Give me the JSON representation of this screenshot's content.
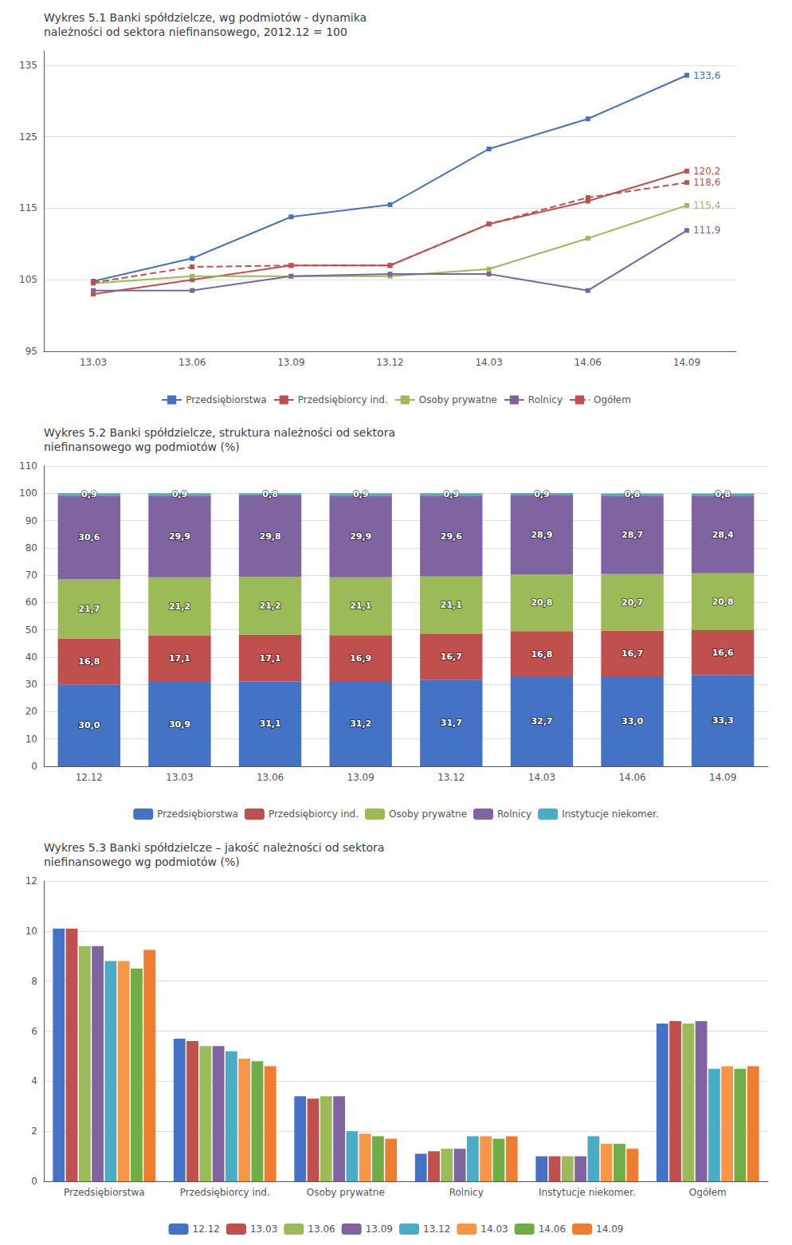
{
  "chart_data": [
    {
      "type": "line",
      "title": "Wykres 5.1 Banki spółdzielcze, wg podmiotów - dynamika\nnależności od sektora niefinansowego, 2012.12 = 100",
      "categories": [
        "13.03",
        "13.06",
        "13.09",
        "13.12",
        "14.03",
        "14.06",
        "14.09"
      ],
      "series": [
        {
          "name": "Przedsiębiorstwa",
          "color": "#4472c4",
          "marker": "square",
          "line_style": "solid",
          "values": [
            104.8,
            108.0,
            113.8,
            115.5,
            123.3,
            127.5,
            133.6
          ],
          "value_labels": [
            null,
            null,
            null,
            null,
            null,
            null,
            "133,6"
          ]
        },
        {
          "name": "Przedsiębiorcy ind.",
          "color": "#c0504d",
          "marker": "square",
          "line_style": "solid",
          "values": [
            103.0,
            105.0,
            107.0,
            107.0,
            112.8,
            116.0,
            120.2
          ],
          "value_labels": [
            null,
            null,
            null,
            null,
            null,
            null,
            "120,2"
          ]
        },
        {
          "name": "Osoby prywatne",
          "color": "#9bbb59",
          "marker": "square",
          "line_style": "solid",
          "values": [
            104.5,
            105.5,
            105.5,
            105.5,
            106.5,
            110.8,
            115.4
          ],
          "value_labels": [
            null,
            null,
            null,
            null,
            null,
            null,
            "115,4"
          ]
        },
        {
          "name": "Rolnicy",
          "color": "#8064a2",
          "marker": "square",
          "line_style": "solid",
          "values": [
            103.5,
            103.5,
            105.5,
            105.8,
            105.8,
            103.5,
            111.9
          ],
          "value_labels": [
            null,
            null,
            null,
            null,
            null,
            null,
            "111,9"
          ]
        },
        {
          "name": "Ogółem",
          "color": "#c0504d",
          "marker": "square",
          "line_style": "dashed",
          "values": [
            104.6,
            106.8,
            107.0,
            107.0,
            112.8,
            116.5,
            118.6
          ],
          "value_labels": [
            null,
            null,
            null,
            null,
            null,
            null,
            "118,6"
          ]
        }
      ],
      "data_labels": true,
      "ylim": [
        95,
        137
      ],
      "yticks": [
        95,
        105,
        115,
        125,
        135
      ],
      "grid": true,
      "legend": "bottom"
    },
    {
      "type": "bar",
      "title": "Wykres 5.2 Banki spółdzielcze, struktura należności od sektora\nniefinansowego wg podmiotów (%)",
      "categories": [
        "12.12",
        "13.03",
        "13.06",
        "13.09",
        "13.12",
        "14.03",
        "14.06",
        "14.09"
      ],
      "stacked": true,
      "data_labels": true,
      "series": [
        {
          "name": "Przedsiębiorstwa",
          "color": "#4472c4",
          "values": [
            30.0,
            30.9,
            31.1,
            31.2,
            31.7,
            32.7,
            33.0,
            33.3
          ],
          "value_labels": [
            "30,0",
            "30,9",
            "31,1",
            "31,2",
            "31,7",
            "32,7",
            "33,0",
            "33,3"
          ]
        },
        {
          "name": "Przedsiębiorcy ind.",
          "color": "#c0504d",
          "values": [
            16.8,
            17.1,
            17.1,
            16.9,
            16.7,
            16.8,
            16.7,
            16.6
          ],
          "value_labels": [
            "16,8",
            "17,1",
            "17,1",
            "16,9",
            "16,7",
            "16,8",
            "16,7",
            "16,6"
          ]
        },
        {
          "name": "Osoby prywatne",
          "color": "#9bbb59",
          "values": [
            21.7,
            21.2,
            21.2,
            21.1,
            21.1,
            20.8,
            20.7,
            20.8
          ],
          "value_labels": [
            "21,7",
            "21,2",
            "21,2",
            "21,1",
            "21,1",
            "20,8",
            "20,7",
            "20,8"
          ]
        },
        {
          "name": "Rolnicy",
          "color": "#8064a2",
          "values": [
            30.6,
            29.9,
            29.8,
            29.9,
            29.6,
            28.9,
            28.7,
            28.4
          ],
          "value_labels": [
            "30,6",
            "29,9",
            "29,8",
            "29,9",
            "29,6",
            "28,9",
            "28,7",
            "28,4"
          ]
        },
        {
          "name": "Instytucje niekomer.",
          "color": "#4bacc6",
          "values": [
            0.9,
            0.9,
            0.8,
            0.9,
            0.9,
            0.9,
            0.8,
            0.8
          ],
          "value_labels": [
            "0,9",
            "0,9",
            "0,8",
            "0,9",
            "0,9",
            "0,9",
            "0,8",
            "0,8"
          ]
        }
      ],
      "ylim": [
        0,
        110
      ],
      "yticks": [
        0,
        10,
        20,
        30,
        40,
        50,
        60,
        70,
        80,
        90,
        100,
        110
      ],
      "grid": true,
      "legend": "bottom"
    },
    {
      "type": "bar",
      "title": "Wykres 5.3 Banki spółdzielcze – jakość należności od sektora\nniefinansowego wg podmiotów (%)",
      "categories": [
        "Przedsiębiorstwa",
        "Przedsiębiorcy ind.",
        "Osoby prywatne",
        "Rolnicy",
        "Instytucje niekomer.",
        "Ogółem"
      ],
      "series": [
        {
          "name": "12.12",
          "color": "#4472c4",
          "values": [
            10.1,
            5.7,
            3.4,
            1.1,
            1.0,
            6.3
          ]
        },
        {
          "name": "13.03",
          "color": "#c0504d",
          "values": [
            10.1,
            5.6,
            3.3,
            1.2,
            1.0,
            6.4
          ]
        },
        {
          "name": "13.06",
          "color": "#9bbb59",
          "values": [
            9.4,
            5.4,
            3.4,
            1.3,
            1.0,
            6.3
          ]
        },
        {
          "name": "13.09",
          "color": "#8064a2",
          "values": [
            9.4,
            5.4,
            3.4,
            1.3,
            1.0,
            6.4
          ]
        },
        {
          "name": "13.12",
          "color": "#4bacc6",
          "values": [
            8.8,
            5.2,
            2.0,
            1.8,
            1.8,
            4.5
          ]
        },
        {
          "name": "14.03",
          "color": "#f79646",
          "values": [
            8.8,
            4.9,
            1.9,
            1.8,
            1.5,
            4.6
          ]
        },
        {
          "name": "14.06",
          "color": "#70ad47",
          "values": [
            8.5,
            4.8,
            1.8,
            1.7,
            1.5,
            4.5
          ]
        },
        {
          "name": "14.09",
          "color": "#ed7d31",
          "values": [
            9.25,
            4.6,
            1.7,
            1.8,
            1.3,
            4.6
          ]
        }
      ],
      "ylim": [
        0,
        12
      ],
      "yticks": [
        0,
        2,
        4,
        6,
        8,
        10,
        12
      ],
      "grid": true,
      "legend": "bottom"
    }
  ]
}
